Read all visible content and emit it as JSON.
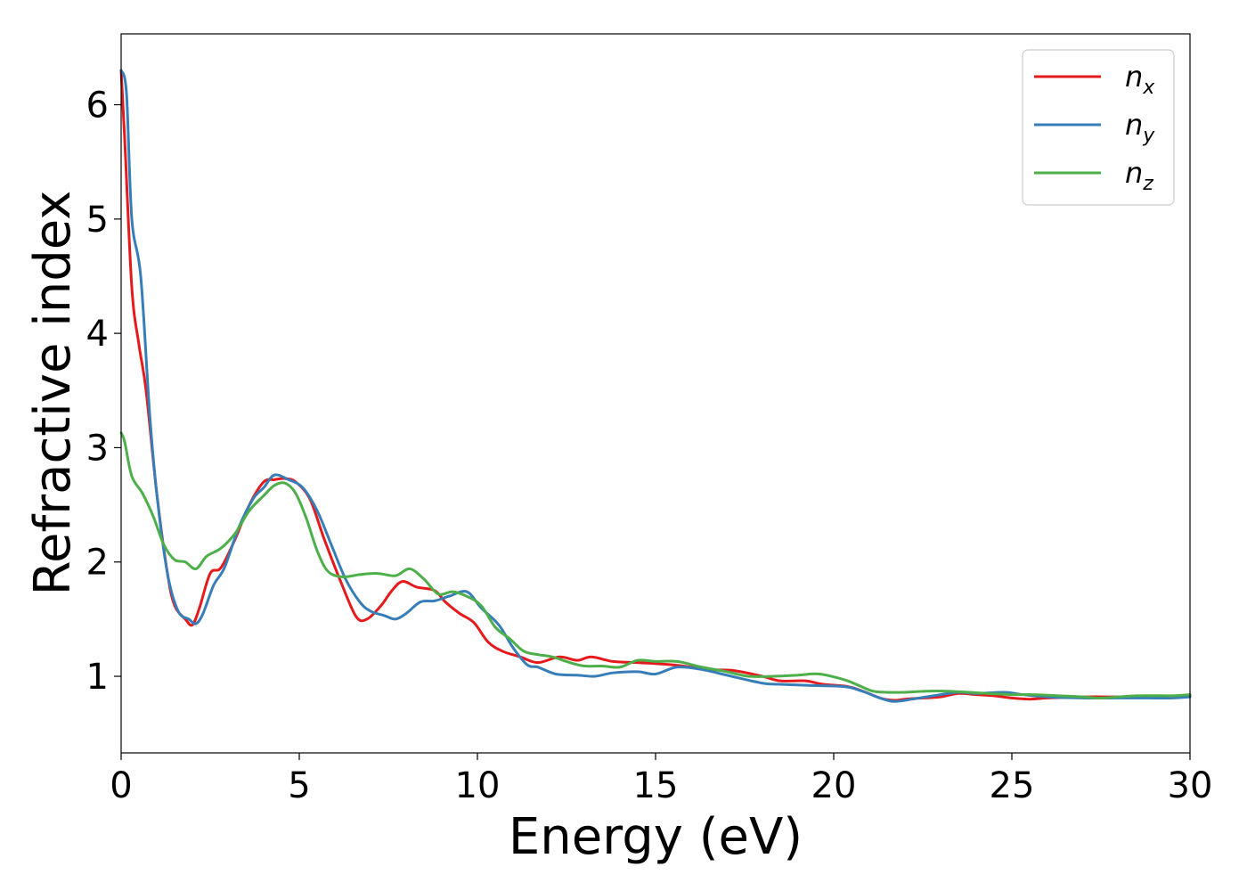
{
  "chart_data": {
    "type": "line",
    "title": "",
    "xlabel": "Energy (eV)",
    "ylabel": "Refractive index",
    "xlim": [
      0,
      30
    ],
    "ylim": [
      0.33,
      6.62
    ],
    "xticks": [
      0,
      5,
      10,
      15,
      20,
      25,
      30
    ],
    "yticks": [
      1,
      2,
      3,
      4,
      5,
      6
    ],
    "grid": false,
    "legend_position": "top-right",
    "series": [
      {
        "name": "n",
        "subscript": "x",
        "color": "#e41a1c",
        "points": [
          [
            0,
            6.3
          ],
          [
            0.1,
            5.7
          ],
          [
            0.3,
            4.4
          ],
          [
            0.5,
            3.9
          ],
          [
            0.7,
            3.5
          ],
          [
            1.0,
            2.6
          ],
          [
            1.3,
            1.9
          ],
          [
            1.5,
            1.62
          ],
          [
            1.8,
            1.5
          ],
          [
            2.0,
            1.45
          ],
          [
            2.2,
            1.6
          ],
          [
            2.5,
            1.9
          ],
          [
            2.8,
            1.95
          ],
          [
            3.2,
            2.2
          ],
          [
            3.6,
            2.5
          ],
          [
            4.0,
            2.7
          ],
          [
            4.3,
            2.72
          ],
          [
            4.6,
            2.73
          ],
          [
            4.9,
            2.7
          ],
          [
            5.3,
            2.55
          ],
          [
            5.7,
            2.2
          ],
          [
            6.2,
            1.8
          ],
          [
            6.6,
            1.52
          ],
          [
            6.9,
            1.5
          ],
          [
            7.3,
            1.62
          ],
          [
            7.6,
            1.75
          ],
          [
            7.9,
            1.83
          ],
          [
            8.3,
            1.78
          ],
          [
            8.8,
            1.75
          ],
          [
            9.1,
            1.65
          ],
          [
            9.5,
            1.55
          ],
          [
            9.9,
            1.47
          ],
          [
            10.3,
            1.3
          ],
          [
            10.7,
            1.22
          ],
          [
            11.2,
            1.17
          ],
          [
            11.7,
            1.12
          ],
          [
            12.3,
            1.17
          ],
          [
            12.8,
            1.14
          ],
          [
            13.2,
            1.17
          ],
          [
            13.8,
            1.13
          ],
          [
            14.5,
            1.12
          ],
          [
            15.5,
            1.1
          ],
          [
            16.5,
            1.06
          ],
          [
            17.2,
            1.05
          ],
          [
            18.0,
            1.0
          ],
          [
            18.5,
            0.96
          ],
          [
            19.2,
            0.96
          ],
          [
            19.7,
            0.93
          ],
          [
            20.4,
            0.91
          ],
          [
            20.9,
            0.86
          ],
          [
            21.3,
            0.81
          ],
          [
            21.7,
            0.79
          ],
          [
            22.0,
            0.8
          ],
          [
            22.5,
            0.81
          ],
          [
            23.0,
            0.82
          ],
          [
            23.5,
            0.85
          ],
          [
            24.0,
            0.84
          ],
          [
            24.5,
            0.83
          ],
          [
            25.0,
            0.81
          ],
          [
            25.5,
            0.8
          ],
          [
            26.0,
            0.81
          ],
          [
            27.0,
            0.82
          ],
          [
            28.0,
            0.82
          ],
          [
            29.0,
            0.82
          ],
          [
            30.0,
            0.83
          ]
        ]
      },
      {
        "name": "n",
        "subscript": "y",
        "color": "#377eb8",
        "points": [
          [
            0,
            6.3
          ],
          [
            0.15,
            6.1
          ],
          [
            0.3,
            5.0
          ],
          [
            0.55,
            4.5
          ],
          [
            0.8,
            3.3
          ],
          [
            1.0,
            2.6
          ],
          [
            1.3,
            1.9
          ],
          [
            1.6,
            1.57
          ],
          [
            1.9,
            1.5
          ],
          [
            2.1,
            1.46
          ],
          [
            2.3,
            1.55
          ],
          [
            2.6,
            1.8
          ],
          [
            2.9,
            1.95
          ],
          [
            3.3,
            2.3
          ],
          [
            3.7,
            2.55
          ],
          [
            4.0,
            2.65
          ],
          [
            4.3,
            2.76
          ],
          [
            4.7,
            2.72
          ],
          [
            5.1,
            2.65
          ],
          [
            5.5,
            2.45
          ],
          [
            5.9,
            2.15
          ],
          [
            6.3,
            1.85
          ],
          [
            6.7,
            1.65
          ],
          [
            7.0,
            1.57
          ],
          [
            7.4,
            1.53
          ],
          [
            7.7,
            1.5
          ],
          [
            8.0,
            1.55
          ],
          [
            8.4,
            1.65
          ],
          [
            8.8,
            1.66
          ],
          [
            9.2,
            1.7
          ],
          [
            9.7,
            1.74
          ],
          [
            10.1,
            1.6
          ],
          [
            10.6,
            1.45
          ],
          [
            11.0,
            1.25
          ],
          [
            11.4,
            1.1
          ],
          [
            11.7,
            1.08
          ],
          [
            12.2,
            1.02
          ],
          [
            12.8,
            1.01
          ],
          [
            13.3,
            1.0
          ],
          [
            13.8,
            1.03
          ],
          [
            14.5,
            1.04
          ],
          [
            15.0,
            1.02
          ],
          [
            15.6,
            1.08
          ],
          [
            16.3,
            1.06
          ],
          [
            17.0,
            1.01
          ],
          [
            18.0,
            0.94
          ],
          [
            18.5,
            0.93
          ],
          [
            19.3,
            0.92
          ],
          [
            20.3,
            0.91
          ],
          [
            20.8,
            0.87
          ],
          [
            21.3,
            0.81
          ],
          [
            21.7,
            0.78
          ],
          [
            22.2,
            0.8
          ],
          [
            22.8,
            0.83
          ],
          [
            23.5,
            0.86
          ],
          [
            24.0,
            0.85
          ],
          [
            24.8,
            0.86
          ],
          [
            25.3,
            0.84
          ],
          [
            26.0,
            0.82
          ],
          [
            27.0,
            0.81
          ],
          [
            28.0,
            0.81
          ],
          [
            28.8,
            0.81
          ],
          [
            29.5,
            0.81
          ],
          [
            30.0,
            0.82
          ]
        ]
      },
      {
        "name": "n",
        "subscript": "z",
        "color": "#4daf4a",
        "points": [
          [
            0,
            3.13
          ],
          [
            0.1,
            3.05
          ],
          [
            0.3,
            2.75
          ],
          [
            0.6,
            2.6
          ],
          [
            0.9,
            2.4
          ],
          [
            1.2,
            2.15
          ],
          [
            1.5,
            2.02
          ],
          [
            1.8,
            2.0
          ],
          [
            2.1,
            1.94
          ],
          [
            2.4,
            2.05
          ],
          [
            2.8,
            2.12
          ],
          [
            3.2,
            2.25
          ],
          [
            3.6,
            2.45
          ],
          [
            4.0,
            2.58
          ],
          [
            4.3,
            2.67
          ],
          [
            4.6,
            2.69
          ],
          [
            4.9,
            2.6
          ],
          [
            5.2,
            2.38
          ],
          [
            5.5,
            2.1
          ],
          [
            5.8,
            1.92
          ],
          [
            6.2,
            1.87
          ],
          [
            6.7,
            1.89
          ],
          [
            7.2,
            1.9
          ],
          [
            7.7,
            1.88
          ],
          [
            8.1,
            1.94
          ],
          [
            8.5,
            1.85
          ],
          [
            8.9,
            1.72
          ],
          [
            9.3,
            1.74
          ],
          [
            9.7,
            1.7
          ],
          [
            10.1,
            1.62
          ],
          [
            10.5,
            1.43
          ],
          [
            10.9,
            1.33
          ],
          [
            11.3,
            1.22
          ],
          [
            11.7,
            1.19
          ],
          [
            12.1,
            1.17
          ],
          [
            12.6,
            1.12
          ],
          [
            13.0,
            1.09
          ],
          [
            13.5,
            1.09
          ],
          [
            14.0,
            1.08
          ],
          [
            14.5,
            1.14
          ],
          [
            15.0,
            1.13
          ],
          [
            15.6,
            1.13
          ],
          [
            16.3,
            1.08
          ],
          [
            17.0,
            1.04
          ],
          [
            17.6,
            1.0
          ],
          [
            18.3,
            1.0
          ],
          [
            19.0,
            1.01
          ],
          [
            19.6,
            1.02
          ],
          [
            20.3,
            0.97
          ],
          [
            20.7,
            0.92
          ],
          [
            21.1,
            0.87
          ],
          [
            21.5,
            0.86
          ],
          [
            22.0,
            0.86
          ],
          [
            22.6,
            0.87
          ],
          [
            23.2,
            0.87
          ],
          [
            23.8,
            0.86
          ],
          [
            24.3,
            0.85
          ],
          [
            25.0,
            0.84
          ],
          [
            25.6,
            0.84
          ],
          [
            26.3,
            0.83
          ],
          [
            27.0,
            0.82
          ],
          [
            27.5,
            0.81
          ],
          [
            28.5,
            0.83
          ],
          [
            29.5,
            0.83
          ],
          [
            30.0,
            0.84
          ]
        ]
      }
    ]
  }
}
